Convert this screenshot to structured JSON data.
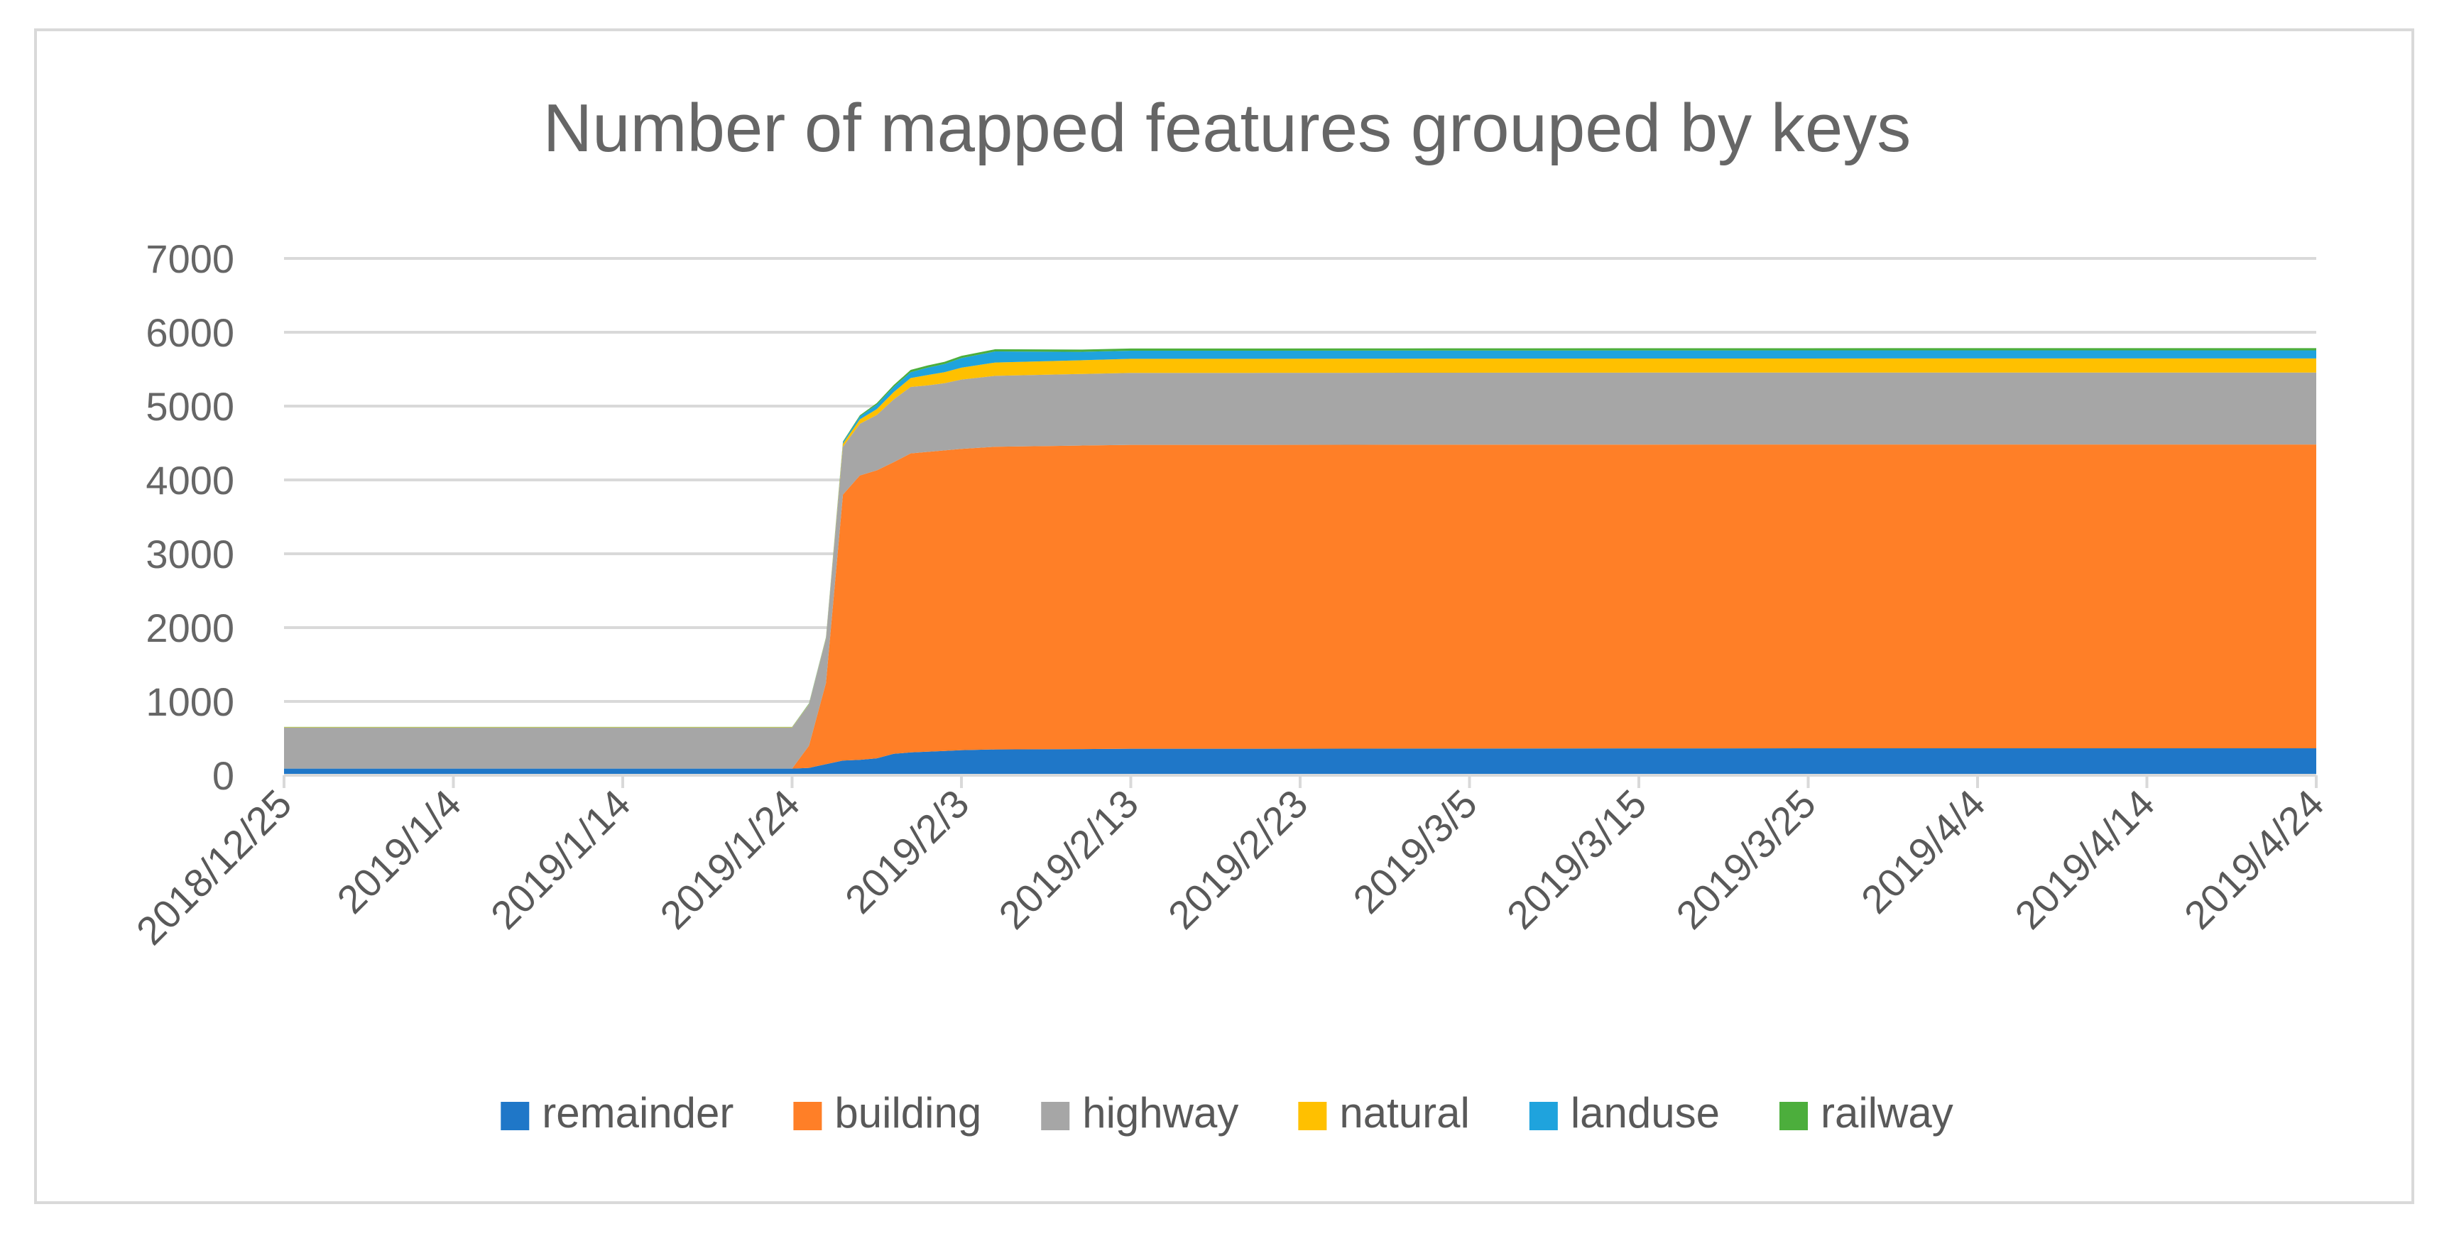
{
  "chart_data": {
    "type": "area",
    "stacked": true,
    "title": "Number of mapped features grouped by keys",
    "xlabel": "",
    "ylabel": "",
    "ylim": [
      0,
      7000
    ],
    "yticks": [
      0,
      1000,
      2000,
      3000,
      4000,
      5000,
      6000,
      7000
    ],
    "xlim": [
      "2018-12-25",
      "2019-04-24"
    ],
    "xticks": [
      "2018/12/25",
      "2019/1/4",
      "2019/1/14",
      "2019/1/24",
      "2019/2/3",
      "2019/2/13",
      "2019/2/23",
      "2019/3/5",
      "2019/3/15",
      "2019/3/25",
      "2019/4/4",
      "2019/4/14",
      "2019/4/24"
    ],
    "grid": true,
    "legend_position": "bottom",
    "x": [
      "2018-12-25",
      "2019-01-24",
      "2019-01-25",
      "2019-01-26",
      "2019-01-27",
      "2019-01-28",
      "2019-01-29",
      "2019-01-30",
      "2019-01-31",
      "2019-02-01",
      "2019-02-02",
      "2019-02-03",
      "2019-02-05",
      "2019-02-10",
      "2019-02-13",
      "2019-02-20",
      "2019-03-01",
      "2019-03-15",
      "2019-04-01",
      "2019-04-24"
    ],
    "series": [
      {
        "name": "remainder",
        "color": "#1f77c8",
        "values": [
          90,
          90,
          100,
          150,
          200,
          210,
          230,
          290,
          310,
          320,
          330,
          340,
          350,
          355,
          360,
          360,
          362,
          364,
          365,
          365
        ]
      },
      {
        "name": "building",
        "color": "#ff7f27",
        "values": [
          0,
          0,
          300,
          1100,
          3600,
          3850,
          3900,
          3950,
          4050,
          4060,
          4070,
          4080,
          4100,
          4110,
          4115,
          4115,
          4115,
          4115,
          4115,
          4115
        ]
      },
      {
        "name": "highway",
        "color": "#a6a6a6",
        "values": [
          555,
          555,
          560,
          600,
          650,
          700,
          750,
          850,
          900,
          900,
          910,
          940,
          960,
          970,
          975,
          975,
          975,
          975,
          975,
          975
        ]
      },
      {
        "name": "natural",
        "color": "#ffc000",
        "values": [
          5,
          5,
          5,
          10,
          40,
          60,
          80,
          100,
          120,
          140,
          150,
          160,
          180,
          185,
          190,
          190,
          190,
          190,
          190,
          190
        ]
      },
      {
        "name": "landuse",
        "color": "#1fa3dd",
        "values": [
          2,
          2,
          5,
          5,
          20,
          40,
          60,
          70,
          80,
          100,
          110,
          130,
          150,
          115,
          110,
          110,
          110,
          110,
          110,
          110
        ]
      },
      {
        "name": "railway",
        "color": "#4cae3c",
        "values": [
          3,
          3,
          5,
          5,
          10,
          15,
          20,
          25,
          30,
          30,
          30,
          30,
          30,
          30,
          30,
          30,
          30,
          30,
          30,
          30
        ]
      }
    ]
  }
}
